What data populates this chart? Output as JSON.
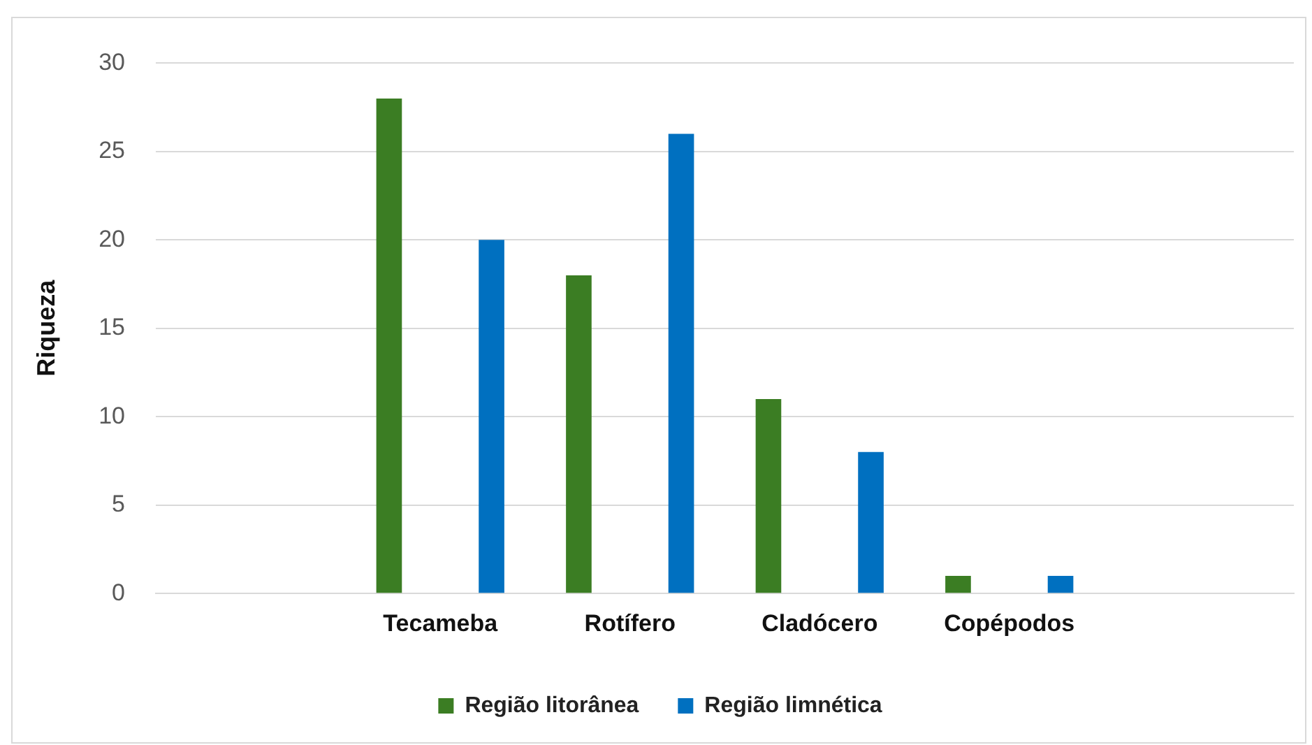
{
  "chart_data": {
    "type": "bar",
    "ylabel": "Riqueza",
    "categories": [
      null,
      "Tecameba",
      "Rotífero",
      "Cladócero",
      "Copépodos",
      null
    ],
    "series": [
      {
        "name": "Região litorânea",
        "color": "#3b7d23",
        "values": [
          null,
          28,
          18,
          11,
          1,
          null
        ]
      },
      {
        "name": "Região limnética",
        "color": "#0070c0",
        "values": [
          null,
          20,
          26,
          8,
          1,
          null
        ]
      }
    ],
    "ylim": [
      0,
      30
    ],
    "yticks": [
      0,
      5,
      10,
      15,
      20,
      25,
      30
    ],
    "grid": "y",
    "legend": "bottom"
  }
}
